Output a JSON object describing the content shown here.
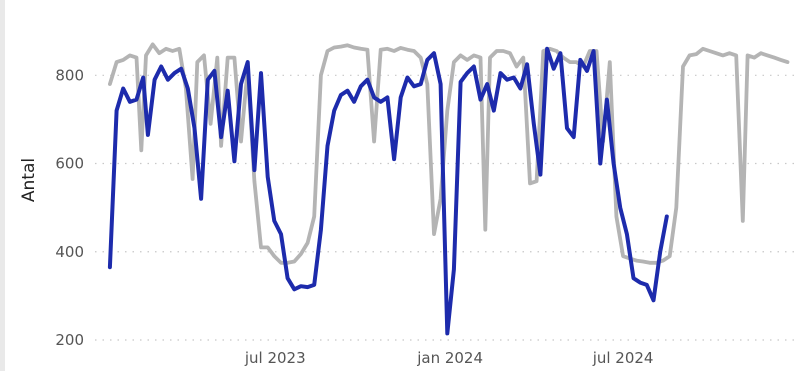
{
  "chart_data": {
    "type": "line",
    "ylabel": "Antal",
    "xlabel": "",
    "ylim": [
      200,
      880
    ],
    "yticks": [
      {
        "value": 200,
        "label": "200"
      },
      {
        "value": 400,
        "label": "400"
      },
      {
        "value": 600,
        "label": "600"
      },
      {
        "value": 800,
        "label": "800"
      }
    ],
    "xlim": [
      "2023-01-06",
      "2024-12-31"
    ],
    "xticks": [
      {
        "date": "2023-07-01",
        "label": "jul 2023"
      },
      {
        "date": "2024-01-01",
        "label": "jan 2024"
      },
      {
        "date": "2024-07-01",
        "label": "jul 2024"
      }
    ],
    "grid": "horizontal dotted",
    "series": [
      {
        "color": "#b4b4b4",
        "points": [
          [
            "2023-01-08",
            780
          ],
          [
            "2023-01-15",
            830
          ],
          [
            "2023-01-22",
            835
          ],
          [
            "2023-01-29",
            845
          ],
          [
            "2023-02-05",
            840
          ],
          [
            "2023-02-10",
            630
          ],
          [
            "2023-02-15",
            845
          ],
          [
            "2023-02-22",
            870
          ],
          [
            "2023-03-01",
            850
          ],
          [
            "2023-03-08",
            860
          ],
          [
            "2023-03-15",
            855
          ],
          [
            "2023-03-22",
            860
          ],
          [
            "2023-03-29",
            770
          ],
          [
            "2023-04-05",
            565
          ],
          [
            "2023-04-10",
            830
          ],
          [
            "2023-04-17",
            845
          ],
          [
            "2023-04-24",
            690
          ],
          [
            "2023-05-01",
            840
          ],
          [
            "2023-05-05",
            640
          ],
          [
            "2023-05-12",
            840
          ],
          [
            "2023-05-19",
            840
          ],
          [
            "2023-05-26",
            650
          ],
          [
            "2023-06-02",
            815
          ],
          [
            "2023-06-09",
            560
          ],
          [
            "2023-06-16",
            410
          ],
          [
            "2023-06-23",
            410
          ],
          [
            "2023-06-30",
            390
          ],
          [
            "2023-07-07",
            375
          ],
          [
            "2023-07-14",
            375
          ],
          [
            "2023-07-21",
            378
          ],
          [
            "2023-07-28",
            395
          ],
          [
            "2023-08-04",
            420
          ],
          [
            "2023-08-11",
            480
          ],
          [
            "2023-08-18",
            800
          ],
          [
            "2023-08-25",
            855
          ],
          [
            "2023-09-01",
            863
          ],
          [
            "2023-09-08",
            865
          ],
          [
            "2023-09-15",
            868
          ],
          [
            "2023-09-22",
            863
          ],
          [
            "2023-09-29",
            860
          ],
          [
            "2023-10-06",
            858
          ],
          [
            "2023-10-13",
            650
          ],
          [
            "2023-10-20",
            858
          ],
          [
            "2023-10-27",
            860
          ],
          [
            "2023-11-03",
            855
          ],
          [
            "2023-11-10",
            862
          ],
          [
            "2023-11-17",
            858
          ],
          [
            "2023-11-24",
            855
          ],
          [
            "2023-12-01",
            840
          ],
          [
            "2023-12-08",
            780
          ],
          [
            "2023-12-15",
            440
          ],
          [
            "2023-12-22",
            520
          ],
          [
            "2023-12-29",
            720
          ],
          [
            "2024-01-05",
            830
          ],
          [
            "2024-01-12",
            845
          ],
          [
            "2024-01-19",
            835
          ],
          [
            "2024-01-26",
            845
          ],
          [
            "2024-02-02",
            840
          ],
          [
            "2024-02-07",
            450
          ],
          [
            "2024-02-12",
            840
          ],
          [
            "2024-02-19",
            855
          ],
          [
            "2024-02-26",
            855
          ],
          [
            "2024-03-04",
            850
          ],
          [
            "2024-03-11",
            820
          ],
          [
            "2024-03-18",
            840
          ],
          [
            "2024-03-25",
            555
          ],
          [
            "2024-04-01",
            560
          ],
          [
            "2024-04-08",
            855
          ],
          [
            "2024-04-15",
            860
          ],
          [
            "2024-04-22",
            855
          ],
          [
            "2024-04-29",
            840
          ],
          [
            "2024-05-06",
            830
          ],
          [
            "2024-05-13",
            830
          ],
          [
            "2024-05-20",
            820
          ],
          [
            "2024-05-27",
            855
          ],
          [
            "2024-06-03",
            855
          ],
          [
            "2024-06-10",
            650
          ],
          [
            "2024-06-17",
            830
          ],
          [
            "2024-06-24",
            480
          ],
          [
            "2024-07-01",
            390
          ],
          [
            "2024-07-08",
            385
          ],
          [
            "2024-07-15",
            380
          ],
          [
            "2024-07-22",
            378
          ],
          [
            "2024-07-29",
            375
          ],
          [
            "2024-08-05",
            375
          ],
          [
            "2024-08-12",
            380
          ],
          [
            "2024-08-19",
            390
          ],
          [
            "2024-08-26",
            500
          ],
          [
            "2024-09-02",
            820
          ],
          [
            "2024-09-09",
            845
          ],
          [
            "2024-09-16",
            848
          ],
          [
            "2024-09-23",
            860
          ],
          [
            "2024-09-30",
            855
          ],
          [
            "2024-10-07",
            850
          ],
          [
            "2024-10-14",
            845
          ],
          [
            "2024-10-21",
            850
          ],
          [
            "2024-10-28",
            845
          ],
          [
            "2024-11-04",
            470
          ],
          [
            "2024-11-09",
            845
          ],
          [
            "2024-11-16",
            840
          ],
          [
            "2024-11-23",
            850
          ],
          [
            "2024-11-30",
            845
          ],
          [
            "2024-12-07",
            840
          ],
          [
            "2024-12-14",
            835
          ],
          [
            "2024-12-21",
            830
          ]
        ]
      },
      {
        "color": "#1d2bac",
        "points": [
          [
            "2023-01-08",
            365
          ],
          [
            "2023-01-15",
            720
          ],
          [
            "2023-01-22",
            770
          ],
          [
            "2023-01-29",
            740
          ],
          [
            "2023-02-05",
            745
          ],
          [
            "2023-02-12",
            795
          ],
          [
            "2023-02-17",
            665
          ],
          [
            "2023-02-24",
            790
          ],
          [
            "2023-03-03",
            820
          ],
          [
            "2023-03-10",
            790
          ],
          [
            "2023-03-17",
            805
          ],
          [
            "2023-03-24",
            815
          ],
          [
            "2023-03-31",
            770
          ],
          [
            "2023-04-07",
            680
          ],
          [
            "2023-04-14",
            520
          ],
          [
            "2023-04-21",
            790
          ],
          [
            "2023-04-28",
            810
          ],
          [
            "2023-05-05",
            660
          ],
          [
            "2023-05-12",
            765
          ],
          [
            "2023-05-19",
            605
          ],
          [
            "2023-05-26",
            780
          ],
          [
            "2023-06-02",
            830
          ],
          [
            "2023-06-09",
            585
          ],
          [
            "2023-06-16",
            805
          ],
          [
            "2023-06-23",
            570
          ],
          [
            "2023-06-30",
            470
          ],
          [
            "2023-07-07",
            440
          ],
          [
            "2023-07-14",
            340
          ],
          [
            "2023-07-21",
            315
          ],
          [
            "2023-07-28",
            322
          ],
          [
            "2023-08-04",
            320
          ],
          [
            "2023-08-11",
            325
          ],
          [
            "2023-08-18",
            450
          ],
          [
            "2023-08-25",
            640
          ],
          [
            "2023-09-01",
            720
          ],
          [
            "2023-09-08",
            755
          ],
          [
            "2023-09-15",
            765
          ],
          [
            "2023-09-22",
            740
          ],
          [
            "2023-09-29",
            775
          ],
          [
            "2023-10-06",
            790
          ],
          [
            "2023-10-13",
            750
          ],
          [
            "2023-10-20",
            740
          ],
          [
            "2023-10-27",
            750
          ],
          [
            "2023-11-03",
            610
          ],
          [
            "2023-11-10",
            750
          ],
          [
            "2023-11-17",
            795
          ],
          [
            "2023-11-24",
            775
          ],
          [
            "2023-12-01",
            780
          ],
          [
            "2023-12-08",
            835
          ],
          [
            "2023-12-15",
            850
          ],
          [
            "2023-12-22",
            780
          ],
          [
            "2023-12-29",
            215
          ],
          [
            "2024-01-05",
            360
          ],
          [
            "2024-01-12",
            785
          ],
          [
            "2024-01-19",
            805
          ],
          [
            "2024-01-26",
            820
          ],
          [
            "2024-02-02",
            745
          ],
          [
            "2024-02-09",
            780
          ],
          [
            "2024-02-16",
            720
          ],
          [
            "2024-02-23",
            805
          ],
          [
            "2024-03-01",
            790
          ],
          [
            "2024-03-08",
            795
          ],
          [
            "2024-03-15",
            770
          ],
          [
            "2024-03-22",
            825
          ],
          [
            "2024-03-29",
            690
          ],
          [
            "2024-04-05",
            575
          ],
          [
            "2024-04-12",
            860
          ],
          [
            "2024-04-19",
            815
          ],
          [
            "2024-04-26",
            850
          ],
          [
            "2024-05-03",
            680
          ],
          [
            "2024-05-10",
            660
          ],
          [
            "2024-05-17",
            835
          ],
          [
            "2024-05-24",
            810
          ],
          [
            "2024-05-31",
            855
          ],
          [
            "2024-06-07",
            600
          ],
          [
            "2024-06-14",
            745
          ],
          [
            "2024-06-21",
            600
          ],
          [
            "2024-06-28",
            500
          ],
          [
            "2024-07-05",
            440
          ],
          [
            "2024-07-12",
            340
          ],
          [
            "2024-07-19",
            330
          ],
          [
            "2024-07-26",
            325
          ],
          [
            "2024-08-02",
            290
          ],
          [
            "2024-08-09",
            400
          ],
          [
            "2024-08-16",
            480
          ]
        ]
      }
    ]
  }
}
